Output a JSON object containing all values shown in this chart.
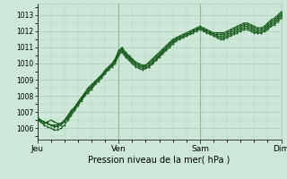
{
  "title": "",
  "xlabel": "Pression niveau de la mer( hPa )",
  "ylabel": "",
  "ylim": [
    1005.3,
    1013.7
  ],
  "yticks": [
    1006,
    1007,
    1008,
    1009,
    1010,
    1011,
    1012,
    1013
  ],
  "day_labels": [
    "Jeu",
    "Ven",
    "Sam",
    "Dim"
  ],
  "day_positions": [
    0,
    24,
    48,
    72
  ],
  "background_color": "#cde8d8",
  "grid_color": "#b0ccb8",
  "line_colors": [
    "#1a5e20",
    "#1a5e20",
    "#1a5e20",
    "#1a5e20",
    "#1a5e20"
  ],
  "n_points": 73,
  "series": [
    [
      1006.5,
      1006.4,
      1006.3,
      1006.4,
      1006.5,
      1006.4,
      1006.3,
      1006.3,
      1006.4,
      1006.7,
      1007.0,
      1007.3,
      1007.6,
      1007.9,
      1008.2,
      1008.5,
      1008.7,
      1008.9,
      1009.1,
      1009.3,
      1009.5,
      1009.7,
      1009.9,
      1010.1,
      1010.6,
      1010.8,
      1010.5,
      1010.3,
      1010.1,
      1009.9,
      1009.8,
      1009.7,
      1009.7,
      1009.8,
      1010.0,
      1010.2,
      1010.5,
      1010.7,
      1010.9,
      1011.1,
      1011.3,
      1011.5,
      1011.6,
      1011.7,
      1011.8,
      1011.9,
      1012.0,
      1012.1,
      1012.2,
      1012.1,
      1012.0,
      1011.9,
      1011.8,
      1011.7,
      1011.6,
      1011.6,
      1011.7,
      1011.8,
      1011.9,
      1012.0,
      1012.1,
      1012.2,
      1012.2,
      1012.1,
      1012.0,
      1011.9,
      1011.9,
      1012.0,
      1012.1,
      1012.3,
      1012.4,
      1012.6,
      1012.8
    ],
    [
      1006.6,
      1006.4,
      1006.2,
      1006.1,
      1006.0,
      1005.9,
      1005.9,
      1006.0,
      1006.2,
      1006.5,
      1006.8,
      1007.1,
      1007.4,
      1007.7,
      1008.0,
      1008.2,
      1008.4,
      1008.7,
      1008.9,
      1009.1,
      1009.4,
      1009.6,
      1009.8,
      1010.0,
      1010.5,
      1010.7,
      1010.4,
      1010.2,
      1010.0,
      1009.8,
      1009.7,
      1009.6,
      1009.7,
      1009.8,
      1010.0,
      1010.2,
      1010.4,
      1010.6,
      1010.8,
      1011.0,
      1011.2,
      1011.4,
      1011.5,
      1011.6,
      1011.7,
      1011.8,
      1011.9,
      1012.0,
      1012.1,
      1012.0,
      1011.9,
      1011.8,
      1011.7,
      1011.6,
      1011.5,
      1011.5,
      1011.6,
      1011.7,
      1011.8,
      1011.9,
      1012.0,
      1012.1,
      1012.1,
      1012.0,
      1011.9,
      1011.9,
      1011.9,
      1012.0,
      1012.2,
      1012.4,
      1012.5,
      1012.7,
      1012.9
    ],
    [
      1006.6,
      1006.5,
      1006.4,
      1006.3,
      1006.2,
      1006.1,
      1006.1,
      1006.2,
      1006.4,
      1006.6,
      1006.9,
      1007.2,
      1007.5,
      1007.8,
      1008.1,
      1008.3,
      1008.6,
      1008.8,
      1009.0,
      1009.2,
      1009.4,
      1009.7,
      1009.9,
      1010.2,
      1010.7,
      1010.9,
      1010.6,
      1010.4,
      1010.2,
      1010.0,
      1009.9,
      1009.8,
      1009.8,
      1009.9,
      1010.1,
      1010.3,
      1010.5,
      1010.7,
      1011.0,
      1011.2,
      1011.4,
      1011.5,
      1011.6,
      1011.7,
      1011.8,
      1011.9,
      1012.0,
      1012.1,
      1012.2,
      1012.1,
      1012.0,
      1011.9,
      1011.8,
      1011.7,
      1011.7,
      1011.7,
      1011.8,
      1011.9,
      1012.0,
      1012.1,
      1012.2,
      1012.3,
      1012.3,
      1012.2,
      1012.1,
      1012.0,
      1012.0,
      1012.1,
      1012.3,
      1012.5,
      1012.6,
      1012.8,
      1013.0
    ],
    [
      1006.6,
      1006.5,
      1006.4,
      1006.3,
      1006.2,
      1006.2,
      1006.2,
      1006.3,
      1006.5,
      1006.7,
      1007.0,
      1007.3,
      1007.5,
      1007.8,
      1008.1,
      1008.3,
      1008.5,
      1008.8,
      1009.0,
      1009.2,
      1009.5,
      1009.7,
      1009.9,
      1010.2,
      1010.7,
      1010.9,
      1010.6,
      1010.4,
      1010.2,
      1010.0,
      1009.9,
      1009.8,
      1009.9,
      1010.0,
      1010.2,
      1010.4,
      1010.6,
      1010.8,
      1011.0,
      1011.2,
      1011.4,
      1011.5,
      1011.6,
      1011.7,
      1011.8,
      1011.9,
      1012.0,
      1012.1,
      1012.2,
      1012.1,
      1012.0,
      1011.9,
      1011.8,
      1011.8,
      1011.8,
      1011.8,
      1011.9,
      1012.0,
      1012.1,
      1012.2,
      1012.3,
      1012.4,
      1012.4,
      1012.3,
      1012.2,
      1012.1,
      1012.1,
      1012.2,
      1012.4,
      1012.6,
      1012.7,
      1012.9,
      1013.1
    ],
    [
      1006.7,
      1006.5,
      1006.4,
      1006.3,
      1006.2,
      1006.2,
      1006.2,
      1006.3,
      1006.5,
      1006.8,
      1007.1,
      1007.3,
      1007.6,
      1007.9,
      1008.1,
      1008.4,
      1008.6,
      1008.8,
      1009.1,
      1009.3,
      1009.6,
      1009.8,
      1010.0,
      1010.3,
      1010.8,
      1011.0,
      1010.7,
      1010.5,
      1010.3,
      1010.1,
      1010.0,
      1009.9,
      1009.9,
      1010.1,
      1010.3,
      1010.5,
      1010.7,
      1010.9,
      1011.1,
      1011.3,
      1011.5,
      1011.6,
      1011.7,
      1011.8,
      1011.9,
      1012.0,
      1012.1,
      1012.2,
      1012.3,
      1012.2,
      1012.1,
      1012.0,
      1011.9,
      1011.9,
      1011.9,
      1011.9,
      1012.0,
      1012.1,
      1012.2,
      1012.3,
      1012.4,
      1012.5,
      1012.5,
      1012.4,
      1012.3,
      1012.2,
      1012.2,
      1012.3,
      1012.5,
      1012.7,
      1012.8,
      1013.0,
      1013.2
    ]
  ]
}
